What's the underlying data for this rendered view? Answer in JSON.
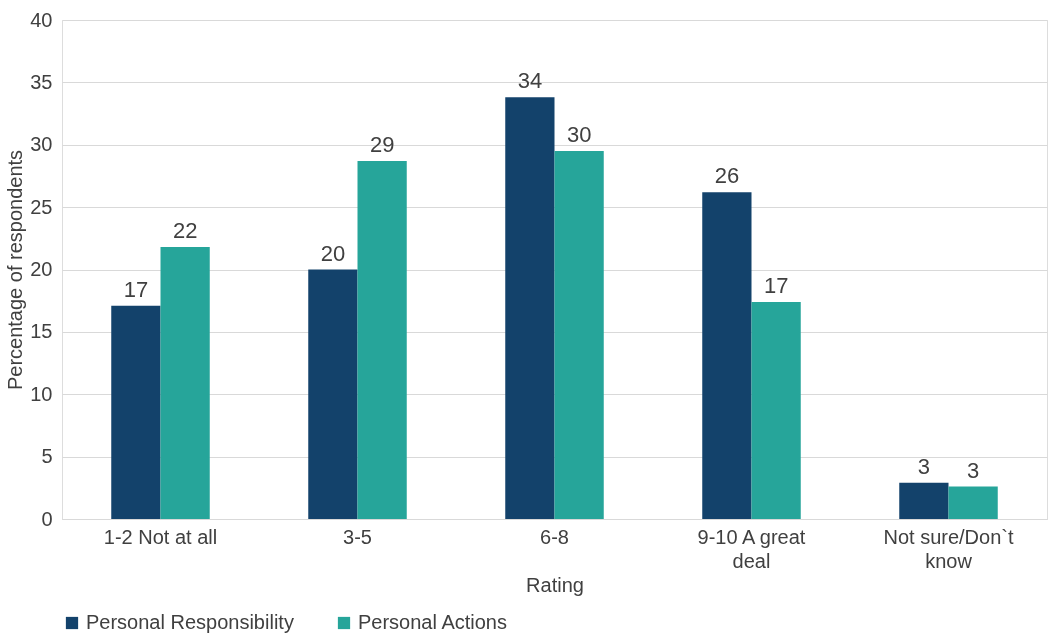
{
  "chart_data": {
    "type": "bar",
    "xlabel": "Rating",
    "ylabel": "Percentage of respondents",
    "categories": [
      "1-2 Not at all",
      "3-5",
      "6-8",
      "9-10 A great deal",
      "Not sure/Don`t know"
    ],
    "series": [
      {
        "name": "Personal Responsibility",
        "color": "#13426b",
        "values": [
          17.1,
          20.0,
          33.8,
          26.2,
          2.9
        ],
        "value_labels": [
          "17",
          "20",
          "34",
          "26",
          "3"
        ]
      },
      {
        "name": "Personal Actions",
        "color": "#26a59a",
        "values": [
          21.8,
          28.7,
          29.5,
          17.4,
          2.6
        ],
        "value_labels": [
          "22",
          "29",
          "30",
          "17",
          "3"
        ]
      }
    ],
    "ylim": [
      0,
      40
    ],
    "yticks": [
      0,
      5,
      10,
      15,
      20,
      25,
      30,
      35,
      40
    ],
    "grid": "y",
    "legend": "bottom"
  }
}
